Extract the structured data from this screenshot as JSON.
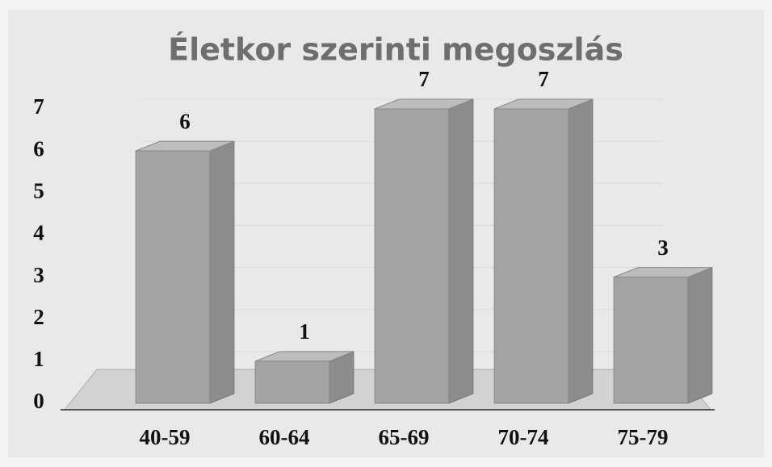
{
  "chart_data": {
    "type": "bar",
    "title": "Életkor szerinti megoszlás",
    "categories": [
      "40-59",
      "60-64",
      "65-69",
      "70-74",
      "75-79"
    ],
    "values": [
      6,
      1,
      7,
      7,
      3
    ],
    "color": "#a3a3a3",
    "ylim": [
      0,
      7
    ],
    "yticks": [
      0,
      1,
      2,
      3,
      4,
      5,
      6,
      7
    ],
    "grid": true
  }
}
